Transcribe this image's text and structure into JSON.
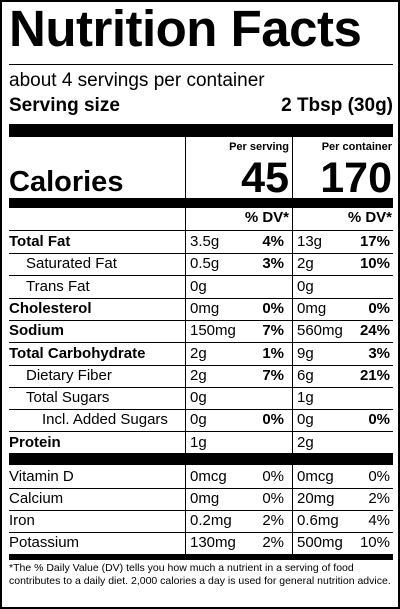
{
  "title": "Nutrition Facts",
  "servings_per_container": "about 4 servings per container",
  "serving_size_label": "Serving size",
  "serving_size_value": "2 Tbsp (30g)",
  "col_per_serving": "Per serving",
  "col_per_container": "Per container",
  "calories_label": "Calories",
  "calories_serving": "45",
  "calories_container": "170",
  "dv_header": "% DV*",
  "nutrients": [
    {
      "name": "Total Fat",
      "bold": true,
      "indent": 0,
      "s_amt": "3.5g",
      "s_dv": "4%",
      "c_amt": "13g",
      "c_dv": "17%"
    },
    {
      "name": "Saturated Fat",
      "bold": false,
      "indent": 1,
      "s_amt": "0.5g",
      "s_dv": "3%",
      "c_amt": "2g",
      "c_dv": "10%"
    },
    {
      "name": "Trans Fat",
      "bold": false,
      "indent": 1,
      "s_amt": "0g",
      "s_dv": "",
      "c_amt": "0g",
      "c_dv": ""
    },
    {
      "name": "Cholesterol",
      "bold": true,
      "indent": 0,
      "s_amt": "0mg",
      "s_dv": "0%",
      "c_amt": "0mg",
      "c_dv": "0%"
    },
    {
      "name": "Sodium",
      "bold": true,
      "indent": 0,
      "s_amt": "150mg",
      "s_dv": "7%",
      "c_amt": "560mg",
      "c_dv": "24%"
    },
    {
      "name": "Total Carbohydrate",
      "bold": true,
      "indent": 0,
      "s_amt": "2g",
      "s_dv": "1%",
      "c_amt": "9g",
      "c_dv": "3%"
    },
    {
      "name": "Dietary Fiber",
      "bold": false,
      "indent": 1,
      "s_amt": "2g",
      "s_dv": "7%",
      "c_amt": "6g",
      "c_dv": "21%"
    },
    {
      "name": "Total Sugars",
      "bold": false,
      "indent": 1,
      "s_amt": "0g",
      "s_dv": "",
      "c_amt": "1g",
      "c_dv": ""
    },
    {
      "name": "Incl. Added Sugars",
      "bold": false,
      "indent": 2,
      "s_amt": "0g",
      "s_dv": "0%",
      "c_amt": "0g",
      "c_dv": "0%"
    },
    {
      "name": "Protein",
      "bold": true,
      "indent": 0,
      "s_amt": "1g",
      "s_dv": "",
      "c_amt": "2g",
      "c_dv": ""
    }
  ],
  "vitamins": [
    {
      "name": "Vitamin D",
      "s_amt": "0mcg",
      "s_dv": "0%",
      "c_amt": "0mcg",
      "c_dv": "0%"
    },
    {
      "name": "Calcium",
      "s_amt": "0mg",
      "s_dv": "0%",
      "c_amt": "20mg",
      "c_dv": "2%"
    },
    {
      "name": "Iron",
      "s_amt": "0.2mg",
      "s_dv": "2%",
      "c_amt": "0.6mg",
      "c_dv": "4%"
    },
    {
      "name": "Potassium",
      "s_amt": "130mg",
      "s_dv": "2%",
      "c_amt": "500mg",
      "c_dv": "10%"
    }
  ],
  "footnote": "*The % Daily Value (DV) tells you how much a nutrient in a serving of food contributes to a daily diet. 2,000 calories a day is used for general nutrition advice."
}
